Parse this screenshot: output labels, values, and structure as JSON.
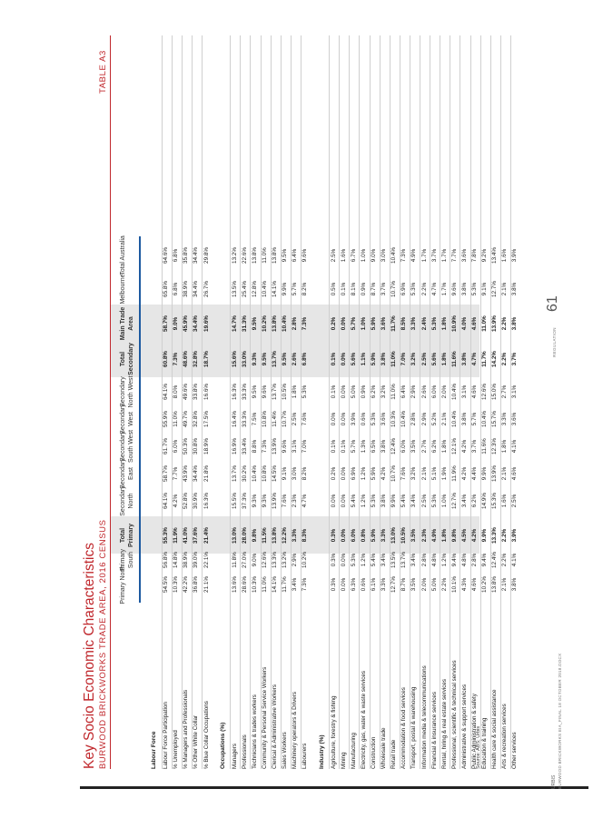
{
  "title": "Key Socio Economic Characteristics",
  "subtitle": "BURWOOD BRICKWORKS TRADE AREA, 2016 CENSUS",
  "table_number": "TABLE A3",
  "columns": [
    {
      "label": "Primary North",
      "bold": false
    },
    {
      "label": "Primary South",
      "bold": false
    },
    {
      "label": "Total Primary",
      "bold": true
    },
    {
      "label": "Secondary North",
      "bold": false
    },
    {
      "label": "Secondary East",
      "bold": false
    },
    {
      "label": "Secondary South West",
      "bold": false
    },
    {
      "label": "Secondary West",
      "bold": false
    },
    {
      "label": "Secondary North West",
      "bold": false
    },
    {
      "label": "Total Secondary",
      "bold": true
    },
    {
      "label": "Main Trade Area",
      "bold": true
    },
    {
      "label": "Melbourne",
      "bold": false
    },
    {
      "label": "Total Australia",
      "bold": false
    }
  ],
  "sections": [
    {
      "heading": "Labour Force",
      "rows": [
        {
          "label": "Labour Force Participation",
          "values": [
            "54.5%",
            "56.8%",
            "55.3%",
            "64.1%",
            "58.7%",
            "61.7%",
            "55.9%",
            "64.1%",
            "60.8%",
            "58.7%",
            "65.8%",
            "64.6%"
          ]
        },
        {
          "label": "% Unemployed",
          "values": [
            "10.3%",
            "14.8%",
            "11.9%",
            "4.2%",
            "7.7%",
            "6.0%",
            "11.0%",
            "8.0%",
            "7.3%",
            "9.0%",
            "6.8%",
            "6.8%"
          ]
        },
        {
          "label": "% Managers and Professionals",
          "values": [
            "42.2%",
            "38.9%",
            "41.0%",
            "52.8%",
            "43.9%",
            "50.3%",
            "49.7%",
            "49.6%",
            "48.6%",
            "45.9%",
            "38.9%",
            "35.8%"
          ]
        },
        {
          "label": "% Other White Collar",
          "values": [
            "36.8%",
            "39.0%",
            "37.6%",
            "30.9%",
            "34.4%",
            "30.8%",
            "32.8%",
            "33.8%",
            "32.8%",
            "34.4%",
            "34.4%",
            "34.4%"
          ]
        },
        {
          "label": "% Blue Collar Occupations",
          "values": [
            "21.1%",
            "22.1%",
            "21.4%",
            "16.3%",
            "21.8%",
            "18.9%",
            "17.5%",
            "16.6%",
            "18.7%",
            "19.6%",
            "26.7%",
            "29.8%"
          ]
        }
      ]
    },
    {
      "heading": "Occupations (%)",
      "rows": [
        {
          "label": "Managers",
          "values": [
            "13.6%",
            "11.8%",
            "13.0%",
            "15.5%",
            "13.7%",
            "16.9%",
            "16.4%",
            "16.3%",
            "15.6%",
            "14.7%",
            "13.5%",
            "13.2%"
          ]
        },
        {
          "label": "Professionals",
          "values": [
            "28.6%",
            "27.0%",
            "28.0%",
            "37.3%",
            "30.2%",
            "33.4%",
            "33.3%",
            "33.3%",
            "33.0%",
            "31.3%",
            "25.4%",
            "22.6%"
          ]
        },
        {
          "label": "Technicians & trades workers",
          "values": [
            "10.3%",
            "9.0%",
            "9.8%",
            "9.3%",
            "10.4%",
            "8.8%",
            "7.5%",
            "9.5%",
            "9.3%",
            "9.5%",
            "12.8%",
            "13.8%"
          ]
        },
        {
          "label": "Community & Personal Service Workers",
          "values": [
            "11.0%",
            "12.6%",
            "11.5%",
            "9.3%",
            "10.8%",
            "7.3%",
            "10.8%",
            "9.6%",
            "9.5%",
            "10.2%",
            "10.4%",
            "11.0%"
          ]
        },
        {
          "label": "Clerical & Administrative Workers",
          "values": [
            "14.1%",
            "13.3%",
            "13.8%",
            "13.9%",
            "14.5%",
            "13.9%",
            "11.4%",
            "13.7%",
            "13.7%",
            "13.8%",
            "14.1%",
            "13.8%"
          ]
        },
        {
          "label": "Sales Workers",
          "values": [
            "11.7%",
            "13.2%",
            "12.2%",
            "7.6%",
            "9.1%",
            "9.6%",
            "10.7%",
            "10.5%",
            "9.5%",
            "10.4%",
            "9.9%",
            "9.5%"
          ]
        },
        {
          "label": "Machinery operators & Drivers",
          "values": [
            "3.4%",
            "2.9%",
            "3.3%",
            "2.3%",
            "3.0%",
            "3.1%",
            "2.5%",
            "1.8%",
            "2.6%",
            "2.8%",
            "5.7%",
            "6.4%"
          ]
        },
        {
          "label": "Labourers",
          "values": [
            "7.3%",
            "10.2%",
            "8.3%",
            "4.7%",
            "8.2%",
            "7.0%",
            "7.6%",
            "5.3%",
            "6.8%",
            "7.3%",
            "8.2%",
            "9.6%"
          ]
        }
      ]
    },
    {
      "heading": "Industry (%)",
      "rows": [
        {
          "label": "Agriculture, forestry & fishing",
          "values": [
            "0.3%",
            "0.3%",
            "0.3%",
            "0.0%",
            "0.2%",
            "0.1%",
            "0.0%",
            "0.1%",
            "0.1%",
            "0.2%",
            "0.5%",
            "2.5%"
          ]
        },
        {
          "label": "Mining",
          "values": [
            "0.0%",
            "0.0%",
            "0.0%",
            "0.0%",
            "0.0%",
            "0.1%",
            "0.0%",
            "0.0%",
            "0.0%",
            "0.0%",
            "0.1%",
            "1.6%"
          ]
        },
        {
          "label": "Manufacturing",
          "values": [
            "6.3%",
            "5.3%",
            "6.0%",
            "5.4%",
            "6.9%",
            "5.7%",
            "3.9%",
            "5.0%",
            "5.6%",
            "5.7%",
            "8.1%",
            "6.7%"
          ]
        },
        {
          "label": "Electricity, gas, water & waste services",
          "values": [
            "0.6%",
            "1.2%",
            "0.8%",
            "1.2%",
            "1.2%",
            "1.3%",
            "0.6%",
            "0.9%",
            "1.1%",
            "1.0%",
            "0.9%",
            "1.0%"
          ]
        },
        {
          "label": "Construction",
          "values": [
            "6.1%",
            "5.4%",
            "5.9%",
            "5.3%",
            "5.9%",
            "6.5%",
            "5.3%",
            "6.2%",
            "5.9%",
            "5.9%",
            "8.7%",
            "9.0%"
          ]
        },
        {
          "label": "Wholesale trade",
          "values": [
            "3.3%",
            "3.4%",
            "3.3%",
            "3.8%",
            "4.2%",
            "3.8%",
            "3.6%",
            "3.2%",
            "3.8%",
            "3.6%",
            "3.7%",
            "3.0%"
          ]
        },
        {
          "label": "Retail trade",
          "values": [
            "12.7%",
            "13.5%",
            "13.0%",
            "9.9%",
            "10.7%",
            "12.4%",
            "10.3%",
            "11.0%",
            "11.0%",
            "11.7%",
            "10.7%",
            "10.4%"
          ]
        },
        {
          "label": "Accommodation & food services",
          "values": [
            "8.7%",
            "13.7%",
            "10.5%",
            "5.4%",
            "7.6%",
            "6.0%",
            "10.4%",
            "6.4%",
            "7.0%",
            "8.5%",
            "6.9%",
            "7.3%"
          ]
        },
        {
          "label": "Transport, postal & warehousing",
          "values": [
            "3.5%",
            "3.4%",
            "3.5%",
            "3.4%",
            "3.2%",
            "3.5%",
            "2.8%",
            "2.9%",
            "3.2%",
            "3.3%",
            "5.3%",
            "4.9%"
          ]
        },
        {
          "label": "Information media & telecommunications",
          "values": [
            "2.0%",
            "2.8%",
            "2.3%",
            "2.5%",
            "2.1%",
            "2.7%",
            "2.9%",
            "2.6%",
            "2.5%",
            "2.4%",
            "2.2%",
            "1.7%"
          ]
        },
        {
          "label": "Financial & insurance services",
          "values": [
            "5.0%",
            "4.8%",
            "4.9%",
            "5.3%",
            "5.1%",
            "6.2%",
            "5.2%",
            "6.0%",
            "5.6%",
            "5.3%",
            "4.7%",
            "3.7%"
          ]
        },
        {
          "label": "Rental, hiring & real estate services",
          "values": [
            "2.2%",
            "1.2%",
            "1.8%",
            "1.0%",
            "1.9%",
            "1.8%",
            "2.1%",
            "2.0%",
            "1.8%",
            "1.8%",
            "1.7%",
            "1.7%"
          ]
        },
        {
          "label": "Professional, scientific & technical services",
          "values": [
            "10.1%",
            "9.4%",
            "9.8%",
            "12.7%",
            "11.9%",
            "12.1%",
            "10.4%",
            "10.4%",
            "11.6%",
            "10.9%",
            "9.6%",
            "7.7%"
          ]
        },
        {
          "label": "Administrative & support services",
          "values": [
            "4.3%",
            "4.8%",
            "4.5%",
            "3.4%",
            "4.2%",
            "4.2%",
            "3.8%",
            "3.1%",
            "3.8%",
            "4.0%",
            "3.8%",
            "3.6%"
          ]
        },
        {
          "label": "Public Administration & safety",
          "values": [
            "4.6%",
            "2.8%",
            "4.2%",
            "6.2%",
            "4.4%",
            "3.7%",
            "5.7%",
            "4.6%",
            "4.7%",
            "4.6%",
            "5.3%",
            "7.8%"
          ]
        },
        {
          "label": "Education & training",
          "values": [
            "10.2%",
            "9.4%",
            "9.9%",
            "14.9%",
            "9.9%",
            "11.6%",
            "10.4%",
            "12.6%",
            "11.7%",
            "11.0%",
            "9.1%",
            "9.2%"
          ]
        },
        {
          "label": "Health care & social assistance",
          "values": [
            "13.8%",
            "12.4%",
            "13.3%",
            "15.3%",
            "13.9%",
            "12.3%",
            "15.7%",
            "15.0%",
            "14.2%",
            "13.9%",
            "12.7%",
            "13.4%"
          ]
        },
        {
          "label": "Arts & recreation services",
          "values": [
            "2.1%",
            "2.2%",
            "2.2%",
            "1.6%",
            "2.1%",
            "1.8%",
            "3.3%",
            "2.7%",
            "2.2%",
            "2.2%",
            "2.1%",
            "1.6%"
          ]
        },
        {
          "label": "Other services",
          "values": [
            "3.8%",
            "4.1%",
            "3.9%",
            "2.5%",
            "4.6%",
            "4.1%",
            "3.6%",
            "3.1%",
            "3.7%",
            "3.8%",
            "3.8%",
            "3.9%"
          ]
        }
      ]
    }
  ],
  "source": "Source: ABS; Urbis",
  "page_number": "61",
  "page_label": "REGULATION",
  "footer_brand": "URBIS",
  "footer_file": "BURWOOD BRICKWORKS EIA_FINAL 18 OCTOBER 2018.DOCX"
}
